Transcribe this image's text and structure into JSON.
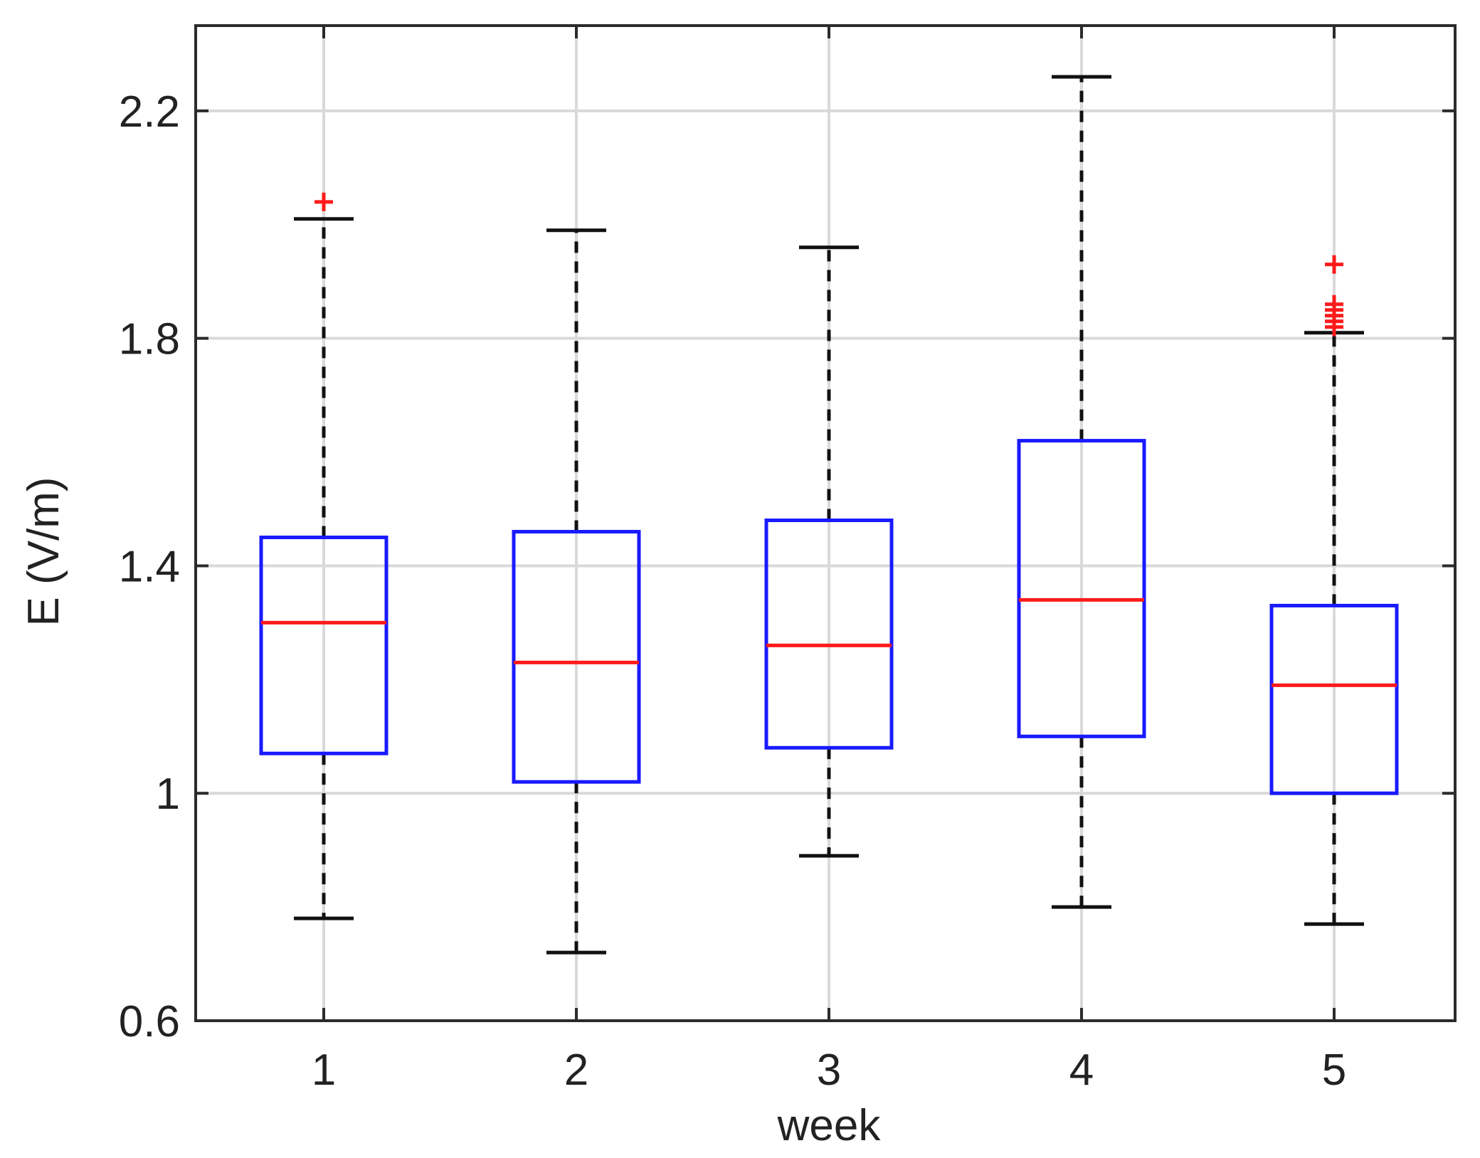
{
  "chart_data": {
    "type": "box",
    "title": "",
    "xlabel": "week",
    "ylabel": "E (V/m)",
    "categories": [
      "1",
      "2",
      "3",
      "4",
      "5"
    ],
    "ylim": [
      0.6,
      2.35
    ],
    "yticks": [
      0.6,
      1,
      1.4,
      1.8,
      2.2
    ],
    "ytick_labels": [
      "0.6",
      "1",
      "1.4",
      "1.8",
      "2.2"
    ],
    "grid": true,
    "boxes": [
      {
        "category": "1",
        "whisker_low": 0.78,
        "q1": 1.07,
        "median": 1.3,
        "q3": 1.45,
        "whisker_high": 2.01,
        "outliers": [
          2.04
        ]
      },
      {
        "category": "2",
        "whisker_low": 0.72,
        "q1": 1.02,
        "median": 1.23,
        "q3": 1.46,
        "whisker_high": 1.99,
        "outliers": []
      },
      {
        "category": "3",
        "whisker_low": 0.89,
        "q1": 1.08,
        "median": 1.26,
        "q3": 1.48,
        "whisker_high": 1.96,
        "outliers": []
      },
      {
        "category": "4",
        "whisker_low": 0.8,
        "q1": 1.1,
        "median": 1.34,
        "q3": 1.62,
        "whisker_high": 2.26,
        "outliers": []
      },
      {
        "category": "5",
        "whisker_low": 0.77,
        "q1": 1.0,
        "median": 1.19,
        "q3": 1.33,
        "whisker_high": 1.81,
        "outliers": [
          1.82,
          1.83,
          1.84,
          1.85,
          1.86,
          1.93
        ]
      }
    ],
    "colors": {
      "box": "#1a1aff",
      "median": "#ff1a1a",
      "outlier": "#ff1a1a",
      "whisker": "#111111"
    }
  }
}
